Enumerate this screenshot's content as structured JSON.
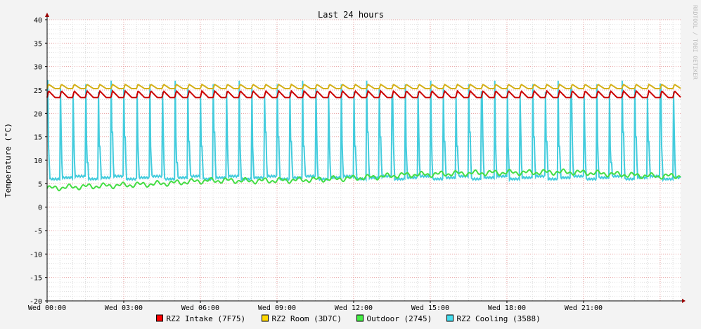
{
  "chart_data": {
    "type": "line",
    "title": "Last 24 hours",
    "ylabel": "Temperature (°C)",
    "xlabel": "",
    "watermark": "RRDTOOL / TOBI OETIKER",
    "ylim": [
      -20,
      40
    ],
    "y_ticks": [
      "40",
      "35",
      "30",
      "25",
      "20",
      "15",
      "10",
      "5",
      "0",
      "-5",
      "-10",
      "-15",
      "-20"
    ],
    "x_range_hours": [
      0,
      24.8
    ],
    "x_ticks": [
      {
        "hour": 0,
        "label": "Wed 00:00"
      },
      {
        "hour": 3,
        "label": "Wed 03:00"
      },
      {
        "hour": 6,
        "label": "Wed 06:00"
      },
      {
        "hour": 9,
        "label": "Wed 09:00"
      },
      {
        "hour": 12,
        "label": "Wed 12:00"
      },
      {
        "hour": 15,
        "label": "Wed 15:00"
      },
      {
        "hour": 18,
        "label": "Wed 18:00"
      },
      {
        "hour": 21,
        "label": "Wed 21:00"
      }
    ],
    "grid": true,
    "legend_position": "bottom",
    "series": [
      {
        "name": "RZ2 Intake (7F75)",
        "color": "#ff0000",
        "stroke": "#cc0000",
        "profile": "sawtooth",
        "base": 23.4,
        "peak": 24.8,
        "period_hours": 0.5
      },
      {
        "name": "RZ2 Room (3D7C)",
        "color": "#ffd700",
        "stroke": "#d4b017",
        "profile": "sawtooth",
        "base": 25.3,
        "peak": 26.2,
        "period_hours": 0.5
      },
      {
        "name": "Outdoor (2745)",
        "color": "#44ee44",
        "stroke": "#44dd44",
        "profile": "trend",
        "x": [
          0,
          1,
          2,
          3,
          4,
          5,
          6,
          7,
          8,
          9,
          10,
          11,
          12,
          13,
          14,
          15,
          16,
          17,
          18,
          19,
          20,
          21,
          22,
          23,
          24,
          24.8
        ],
        "y": [
          4.0,
          4.3,
          4.5,
          4.7,
          4.9,
          5.2,
          5.6,
          5.7,
          5.6,
          5.7,
          5.8,
          6.0,
          6.2,
          6.5,
          6.9,
          7.0,
          7.2,
          7.3,
          7.4,
          7.4,
          7.5,
          7.4,
          7.1,
          6.8,
          6.6,
          6.7
        ]
      },
      {
        "name": "RZ2 Cooling (3588)",
        "color": "#44ddee",
        "stroke": "#44ccdd",
        "profile": "pulse",
        "low": 6.0,
        "mid": 13.0,
        "high": 27.0,
        "period_hours": 0.5
      }
    ]
  }
}
